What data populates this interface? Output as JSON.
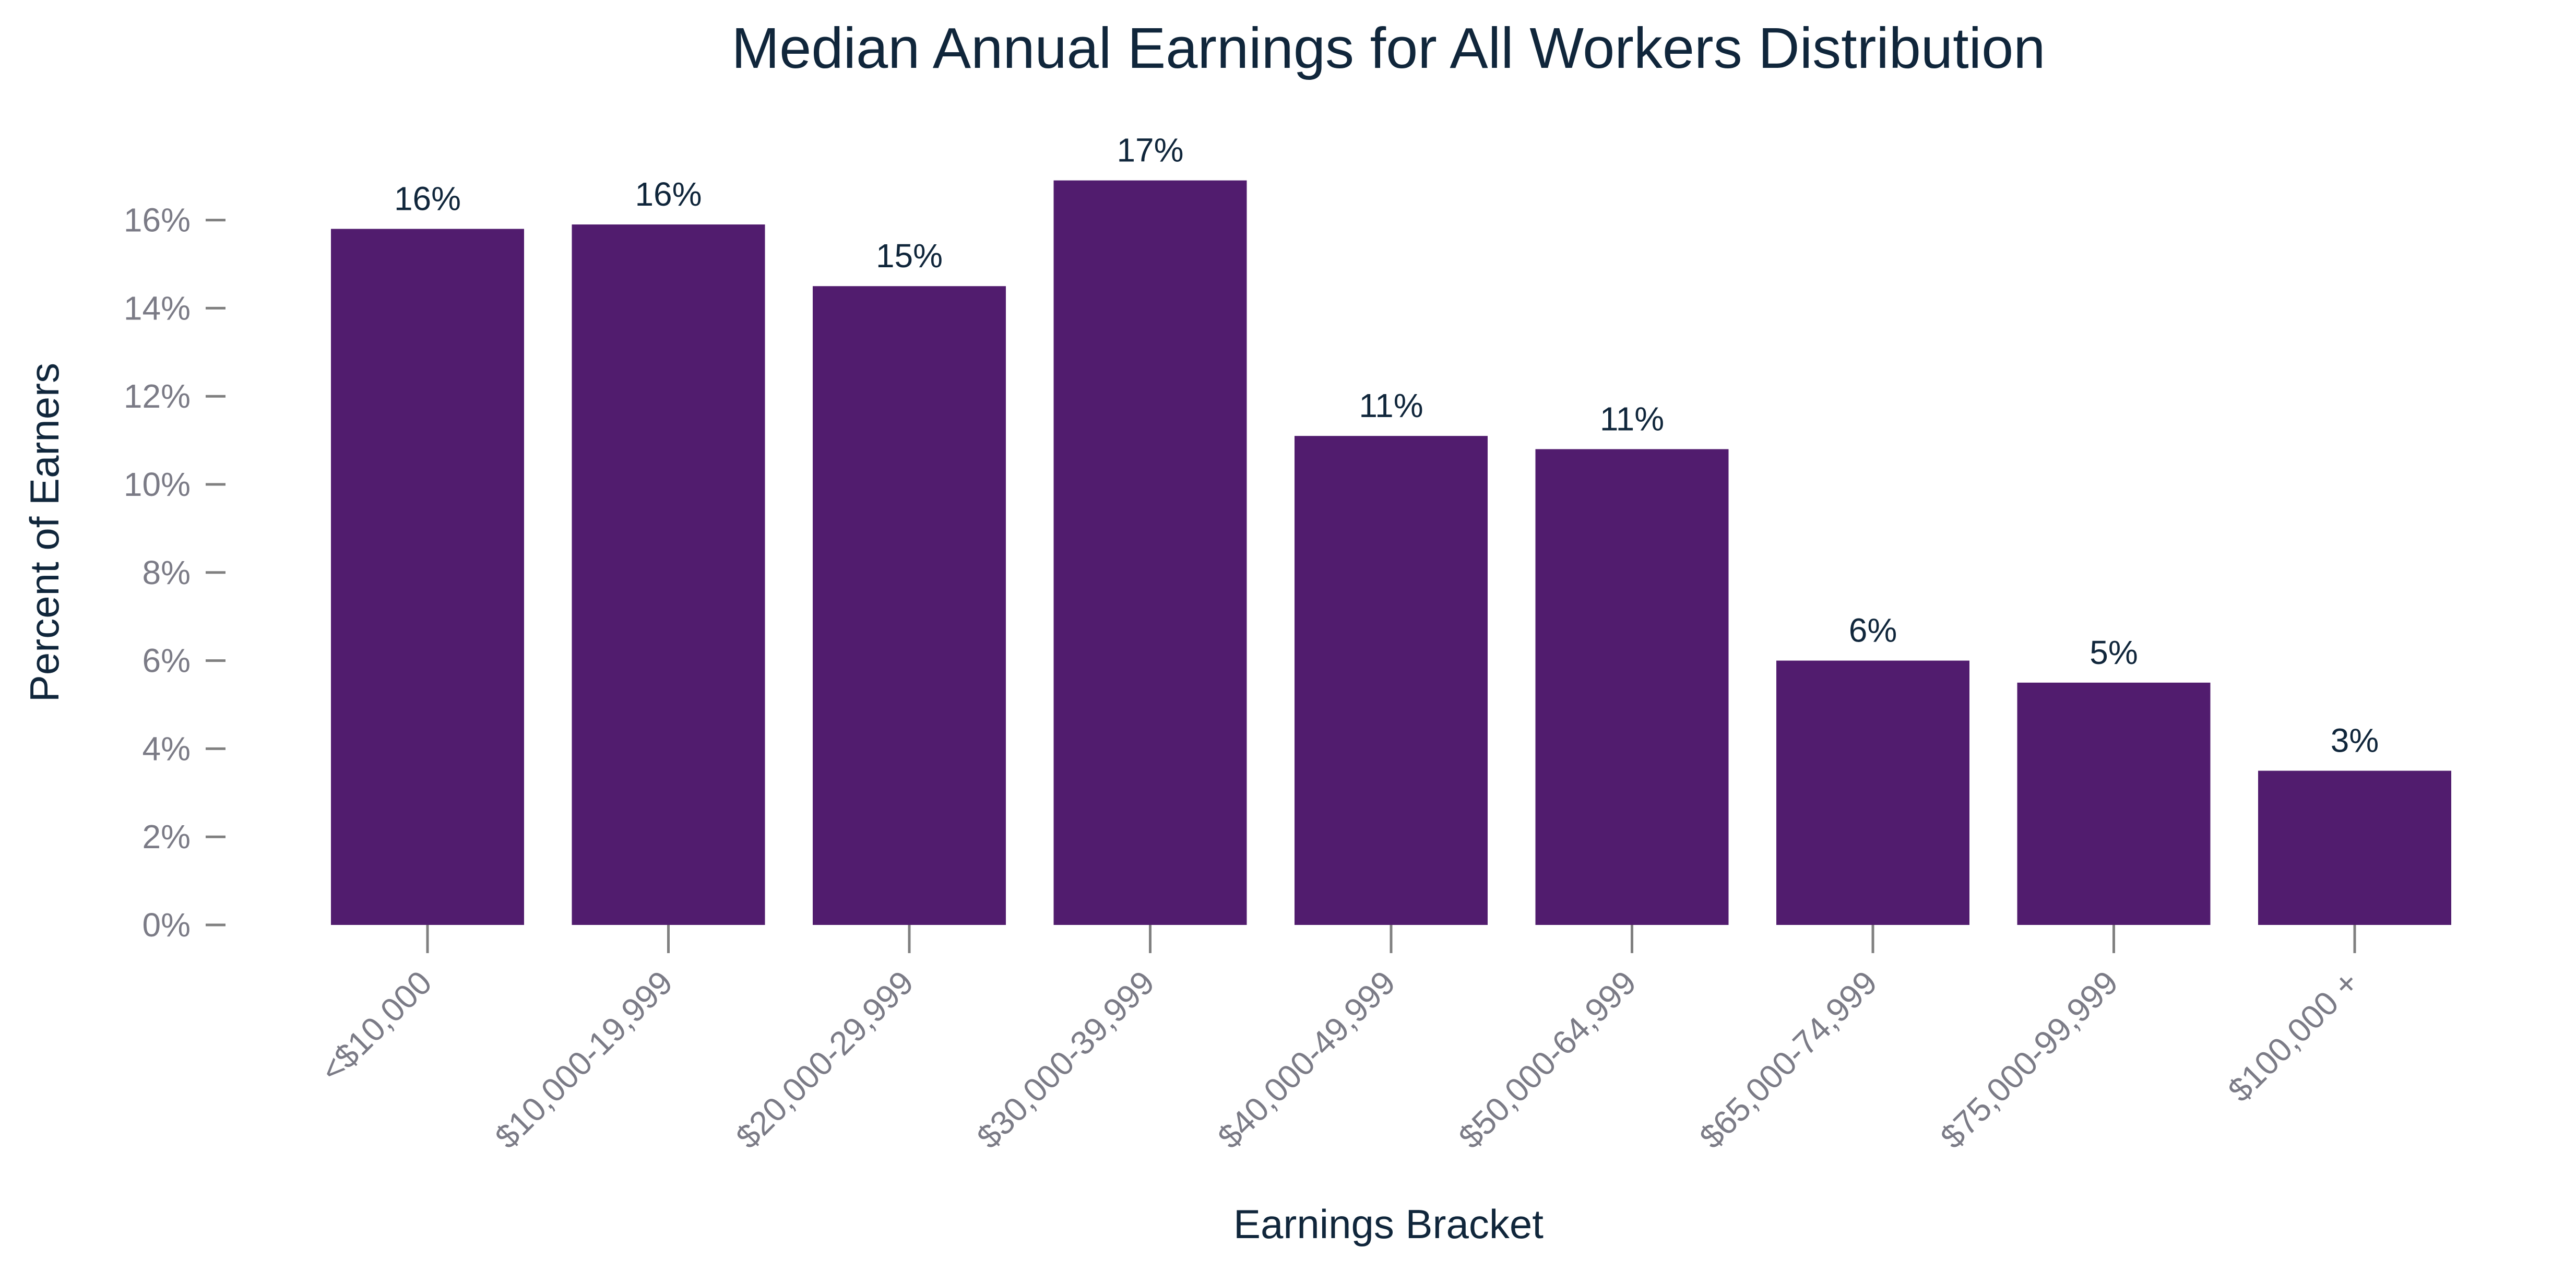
{
  "chart_data": {
    "type": "bar",
    "title": "Median Annual Earnings for All Workers Distribution",
    "xlabel": "Earnings Bracket",
    "ylabel": "Percent of Earners",
    "categories": [
      "<$10,000",
      "$10,000-19,999",
      "$20,000-29,999",
      "$30,000-39,999",
      "$40,000-49,999",
      "$50,000-64,999",
      "$65,000-74,999",
      "$75,000-99,999",
      "$100,000 +"
    ],
    "values": [
      15.8,
      15.9,
      14.5,
      16.9,
      11.1,
      10.8,
      6.0,
      5.5,
      3.5
    ],
    "data_labels": [
      "16%",
      "16%",
      "15%",
      "17%",
      "11%",
      "11%",
      "6%",
      "5%",
      "3%"
    ],
    "yticks": [
      0,
      2,
      4,
      6,
      8,
      10,
      12,
      14,
      16
    ],
    "ytick_labels": [
      "0%",
      "2%",
      "4%",
      "6%",
      "8%",
      "10%",
      "12%",
      "14%",
      "16%"
    ],
    "ylim": [
      0,
      18
    ],
    "grid": false,
    "bar_color": "#511c6e"
  }
}
